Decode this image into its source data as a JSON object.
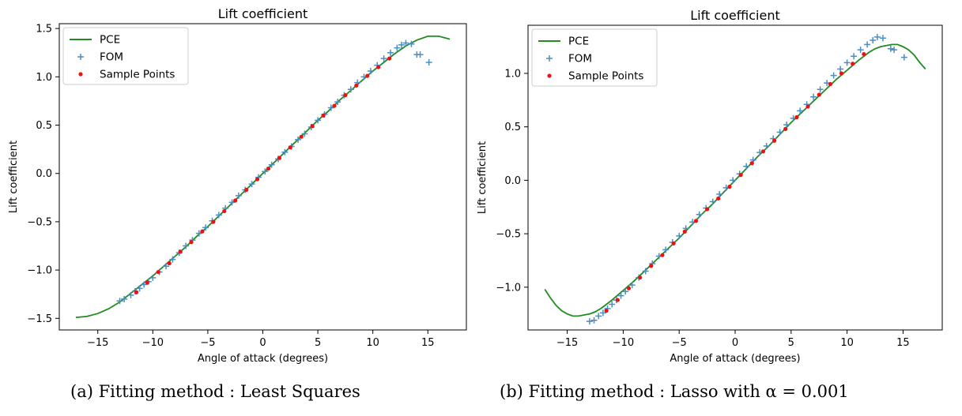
{
  "chart_data": [
    {
      "type": "line",
      "title": "Lift coefficient",
      "xlabel": "Angle of attack (degrees)",
      "ylabel": "Lift coefficient",
      "xlim": [
        -18.5,
        18.5
      ],
      "ylim": [
        -1.62,
        1.55
      ],
      "xticks": [
        -15,
        -10,
        -5,
        0,
        5,
        10,
        15
      ],
      "yticks": [
        -1.5,
        -1.0,
        -0.5,
        0.0,
        0.5,
        1.0,
        1.5
      ],
      "ytick_labels": [
        "−1.5",
        "−1.0",
        "−0.5",
        "0.0",
        "0.5",
        "1.0",
        "1.5"
      ],
      "xtick_labels": [
        "−15",
        "−10",
        "−5",
        "0",
        "5",
        "10",
        "15"
      ],
      "legend": {
        "placement": "upper-left",
        "entries": [
          "PCE",
          "FOM",
          "Sample Points"
        ]
      },
      "colors": {
        "pce": "#228b22",
        "fom": "#4a8fc4",
        "sample": "#ee1111"
      },
      "series": [
        {
          "name": "PCE",
          "kind": "line",
          "x": [
            -17,
            -16,
            -15,
            -14,
            -13,
            -12,
            -11,
            -10,
            -9,
            -8,
            -7,
            -6,
            -5,
            -4,
            -3,
            -2,
            -1,
            0,
            1,
            2,
            3,
            4,
            5,
            6,
            7,
            8,
            9,
            10,
            11,
            12,
            13,
            14,
            15,
            16,
            17
          ],
          "y": [
            -1.49,
            -1.48,
            -1.45,
            -1.4,
            -1.33,
            -1.24,
            -1.15,
            -1.06,
            -0.96,
            -0.86,
            -0.76,
            -0.65,
            -0.55,
            -0.44,
            -0.33,
            -0.22,
            -0.11,
            0.0,
            0.11,
            0.22,
            0.33,
            0.44,
            0.55,
            0.65,
            0.76,
            0.86,
            0.96,
            1.06,
            1.15,
            1.24,
            1.32,
            1.38,
            1.42,
            1.42,
            1.39
          ]
        },
        {
          "name": "FOM",
          "kind": "scatter",
          "marker": "plus",
          "x": [
            -13.0,
            -12.6,
            -12.0,
            -11.6,
            -11.2,
            -10.8,
            -10.4,
            -10.0,
            -9.4,
            -8.8,
            -8.2,
            -7.6,
            -7.0,
            -6.4,
            -5.8,
            -5.2,
            -4.6,
            -4.0,
            -3.4,
            -2.8,
            -2.2,
            -1.6,
            -1.0,
            -0.4,
            0.2,
            0.8,
            1.4,
            2.0,
            2.6,
            3.2,
            3.8,
            4.4,
            5.0,
            5.6,
            6.2,
            6.8,
            7.4,
            8.0,
            8.6,
            9.2,
            9.8,
            10.4,
            11.0,
            11.6,
            12.2,
            12.6,
            13.0,
            13.5,
            14.0,
            14.3,
            15.1
          ],
          "y": [
            -1.32,
            -1.3,
            -1.26,
            -1.22,
            -1.19,
            -1.15,
            -1.12,
            -1.08,
            -1.02,
            -0.96,
            -0.89,
            -0.82,
            -0.75,
            -0.69,
            -0.62,
            -0.56,
            -0.49,
            -0.43,
            -0.36,
            -0.3,
            -0.23,
            -0.17,
            -0.11,
            -0.04,
            0.02,
            0.09,
            0.15,
            0.22,
            0.28,
            0.35,
            0.41,
            0.48,
            0.55,
            0.61,
            0.68,
            0.74,
            0.81,
            0.87,
            0.94,
            1.0,
            1.06,
            1.12,
            1.19,
            1.25,
            1.3,
            1.33,
            1.35,
            1.34,
            1.23,
            1.23,
            1.15
          ]
        },
        {
          "name": "Sample Points",
          "kind": "scatter",
          "marker": "dot",
          "x": [
            -11.5,
            -10.5,
            -9.5,
            -8.5,
            -7.5,
            -6.5,
            -5.5,
            -4.5,
            -3.5,
            -2.5,
            -1.5,
            -0.5,
            0.5,
            1.5,
            2.5,
            3.5,
            4.5,
            5.5,
            6.5,
            7.5,
            8.5,
            9.5,
            10.5,
            11.5
          ],
          "y": [
            -1.23,
            -1.13,
            -1.02,
            -0.93,
            -0.81,
            -0.71,
            -0.6,
            -0.5,
            -0.39,
            -0.28,
            -0.17,
            -0.06,
            0.05,
            0.16,
            0.27,
            0.38,
            0.49,
            0.6,
            0.7,
            0.81,
            0.91,
            1.01,
            1.1,
            1.19
          ]
        }
      ]
    },
    {
      "type": "line",
      "title": "Lift coefficient",
      "xlabel": "Angle of attack (degrees)",
      "ylabel": "Lift coefficient",
      "xlim": [
        -18.5,
        18.5
      ],
      "ylim": [
        -1.4,
        1.45
      ],
      "xticks": [
        -15,
        -10,
        -5,
        0,
        5,
        10,
        15
      ],
      "yticks": [
        -1.0,
        -0.5,
        0.0,
        0.5,
        1.0
      ],
      "ytick_labels": [
        "−1.0",
        "−0.5",
        "0.0",
        "0.5",
        "1.0"
      ],
      "xtick_labels": [
        "−15",
        "−10",
        "−5",
        "0",
        "5",
        "10",
        "15"
      ],
      "legend": {
        "placement": "upper-left",
        "entries": [
          "PCE",
          "FOM",
          "Sample Points"
        ]
      },
      "colors": {
        "pce": "#228b22",
        "fom": "#4a8fc4",
        "sample": "#ee1111"
      },
      "series": [
        {
          "name": "PCE",
          "kind": "line",
          "x": [
            -17,
            -16.5,
            -16,
            -15.5,
            -15,
            -14.5,
            -14,
            -13.5,
            -13,
            -12.5,
            -12,
            -11,
            -10,
            -9,
            -8,
            -7,
            -6,
            -5,
            -4,
            -3,
            -2,
            -1,
            0,
            1,
            2,
            3,
            4,
            5,
            6,
            7,
            8,
            9,
            10,
            11,
            12,
            12.5,
            13,
            13.5,
            14,
            14.5,
            15,
            15.5,
            16,
            16.5,
            17
          ],
          "y": [
            -1.02,
            -1.1,
            -1.17,
            -1.22,
            -1.25,
            -1.27,
            -1.27,
            -1.26,
            -1.25,
            -1.23,
            -1.2,
            -1.12,
            -1.03,
            -0.94,
            -0.84,
            -0.74,
            -0.64,
            -0.54,
            -0.43,
            -0.32,
            -0.22,
            -0.11,
            0.0,
            0.11,
            0.22,
            0.32,
            0.43,
            0.54,
            0.64,
            0.74,
            0.84,
            0.94,
            1.03,
            1.12,
            1.2,
            1.23,
            1.25,
            1.26,
            1.27,
            1.27,
            1.25,
            1.22,
            1.17,
            1.1,
            1.04
          ]
        },
        {
          "name": "FOM",
          "kind": "scatter",
          "marker": "plus",
          "x": [
            -13.0,
            -12.6,
            -12.2,
            -11.8,
            -11.4,
            -11.0,
            -10.6,
            -10.2,
            -9.8,
            -9.2,
            -8.6,
            -8.0,
            -7.4,
            -6.8,
            -6.2,
            -5.6,
            -5.0,
            -4.4,
            -3.8,
            -3.2,
            -2.6,
            -2.0,
            -1.4,
            -0.8,
            -0.2,
            0.4,
            1.0,
            1.6,
            2.2,
            2.8,
            3.4,
            4.0,
            4.6,
            5.2,
            5.8,
            6.4,
            7.0,
            7.6,
            8.2,
            8.8,
            9.4,
            10.0,
            10.6,
            11.2,
            11.8,
            12.3,
            12.7,
            13.2,
            13.9,
            14.2,
            15.1
          ],
          "y": [
            -1.32,
            -1.31,
            -1.27,
            -1.24,
            -1.2,
            -1.16,
            -1.12,
            -1.08,
            -1.04,
            -0.98,
            -0.91,
            -0.85,
            -0.78,
            -0.71,
            -0.65,
            -0.58,
            -0.52,
            -0.45,
            -0.39,
            -0.32,
            -0.26,
            -0.2,
            -0.13,
            -0.07,
            0.0,
            0.06,
            0.13,
            0.19,
            0.26,
            0.32,
            0.39,
            0.45,
            0.52,
            0.58,
            0.65,
            0.71,
            0.78,
            0.85,
            0.91,
            0.98,
            1.04,
            1.1,
            1.16,
            1.22,
            1.27,
            1.31,
            1.34,
            1.33,
            1.23,
            1.22,
            1.15
          ]
        },
        {
          "name": "Sample Points",
          "kind": "scatter",
          "marker": "dot",
          "x": [
            -11.5,
            -10.5,
            -9.5,
            -8.5,
            -7.5,
            -6.5,
            -5.5,
            -4.5,
            -3.5,
            -2.5,
            -1.5,
            -0.5,
            0.5,
            1.5,
            2.5,
            3.5,
            4.5,
            5.5,
            6.5,
            7.5,
            8.5,
            9.5,
            10.5,
            11.5
          ],
          "y": [
            -1.22,
            -1.12,
            -1.01,
            -0.91,
            -0.8,
            -0.7,
            -0.59,
            -0.48,
            -0.38,
            -0.27,
            -0.17,
            -0.06,
            0.05,
            0.16,
            0.27,
            0.37,
            0.48,
            0.59,
            0.69,
            0.8,
            0.9,
            1.0,
            1.09,
            1.18
          ]
        }
      ]
    }
  ],
  "captions": [
    "(a) Fitting method : Least Squares",
    "(b) Fitting method : Lasso with α = 0.001"
  ]
}
